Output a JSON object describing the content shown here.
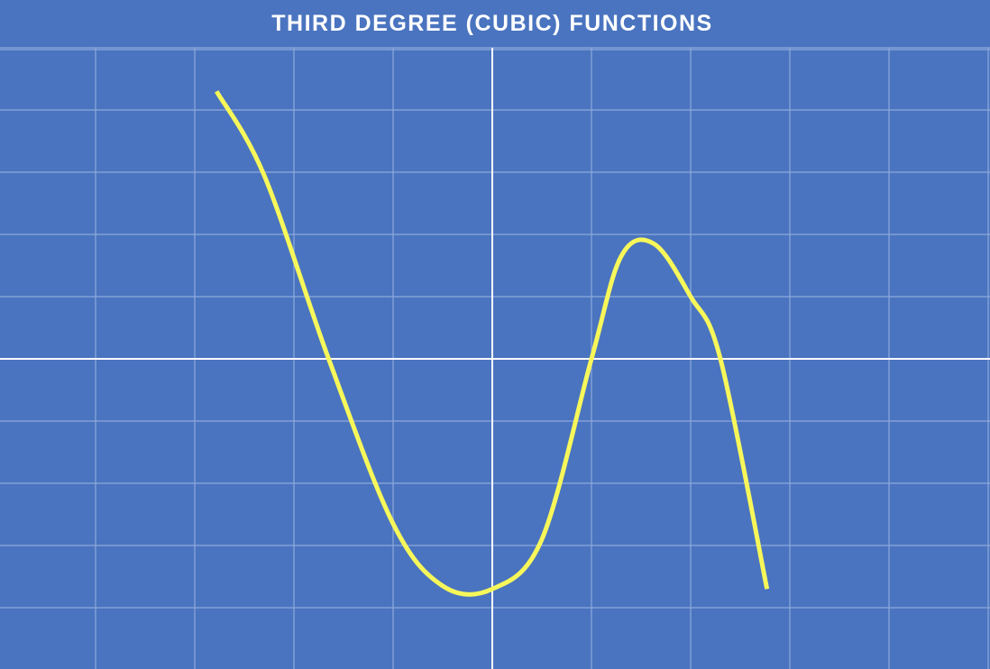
{
  "chart_data": {
    "type": "line",
    "title": "THIRD DEGREE (CUBIC) FUNCTIONS",
    "xlabel": "",
    "ylabel": "",
    "grid": true,
    "legend": "none",
    "xlim": [
      -5,
      5
    ],
    "ylim": [
      -5,
      5
    ],
    "colors": {
      "background": "#4a74bf",
      "grid": "#8ea9dc",
      "axes": "#ffffff",
      "curve": "#f7f75a"
    },
    "series": [
      {
        "x": [
          -2.78,
          -2.3,
          -1.65,
          -1.0,
          -0.5,
          0.0,
          0.5,
          1.0,
          1.3,
          1.63,
          2.0,
          2.3,
          2.77
        ],
        "y": [
          4.3,
          2.95,
          0.0,
          -2.65,
          -3.65,
          -3.7,
          -2.9,
          0.0,
          1.65,
          1.85,
          1.0,
          0.0,
          -3.7
        ]
      }
    ]
  }
}
